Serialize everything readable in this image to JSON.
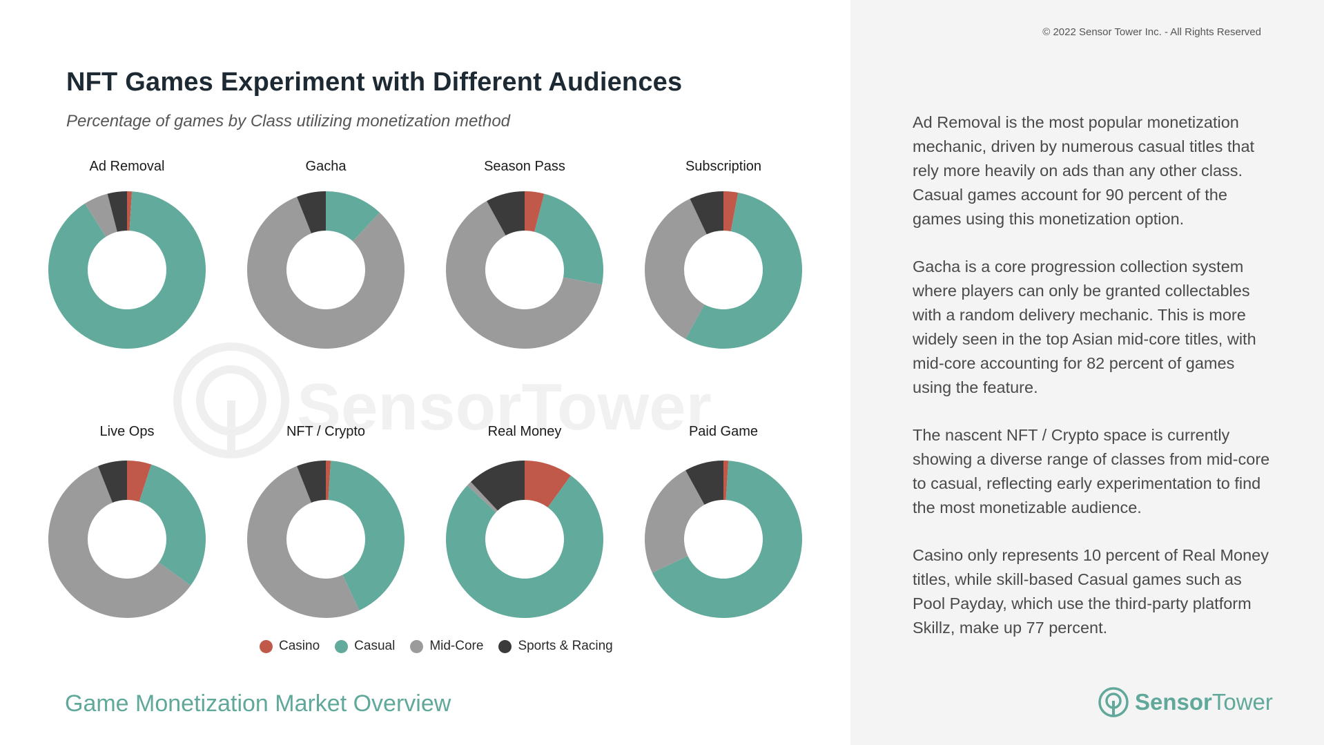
{
  "header": {
    "title": "NFT Games Experiment with Different Audiences",
    "subtitle": "Percentage of games by Class utilizing monetization method",
    "copyright": "© 2022 Sensor Tower Inc. - All Rights Reserved"
  },
  "insights": [
    "Ad Removal is the most popular monetization mechanic, driven by numerous casual titles that rely more heavily on ads than any other class. Casual games account for 90 percent of the games using this monetization option.",
    "Gacha is a core progression collection system where players can only be granted collectables with a random delivery mechanic. This is more widely seen in the top Asian mid-core titles, with mid-core accounting for 82 percent of games using the feature.",
    "The nascent NFT / Crypto space is currently showing a diverse range of classes from mid-core to casual, reflecting early experimentation to find the most monetizable audience.",
    "Casino only represents 10 percent of Real Money titles, while skill-based Casual games such as Pool Payday, which use the third-party platform Skillz, make up 77 percent."
  ],
  "footer": {
    "report_title": "Game Monetization Market Overview",
    "brand_bold": "Sensor",
    "brand_light": "Tower"
  },
  "watermark": {
    "text": "SensorTower"
  },
  "colors": {
    "casino": "#c0594a",
    "casual": "#62aa9c",
    "midcore": "#9b9b9b",
    "sports": "#3b3b3b",
    "brand": "#5fa89a"
  },
  "chart_data": {
    "type": "pie",
    "variant": "donut",
    "categories": [
      "Casino",
      "Casual",
      "Mid-Core",
      "Sports & Racing"
    ],
    "legend": {
      "placement": "bottom-center"
    },
    "charts": [
      {
        "name": "Ad Removal",
        "values": [
          1,
          90,
          5,
          4
        ]
      },
      {
        "name": "Gacha",
        "values": [
          0,
          12,
          82,
          6
        ]
      },
      {
        "name": "Season Pass",
        "values": [
          4,
          24,
          64,
          8
        ]
      },
      {
        "name": "Subscription",
        "values": [
          3,
          55,
          35,
          7
        ]
      },
      {
        "name": "Live Ops",
        "values": [
          5,
          30,
          59,
          6
        ]
      },
      {
        "name": "NFT / Crypto",
        "values": [
          1,
          42,
          51,
          6
        ]
      },
      {
        "name": "Real Money",
        "values": [
          10,
          77,
          1,
          12
        ]
      },
      {
        "name": "Paid Game",
        "values": [
          1,
          67,
          24,
          8
        ]
      }
    ]
  }
}
